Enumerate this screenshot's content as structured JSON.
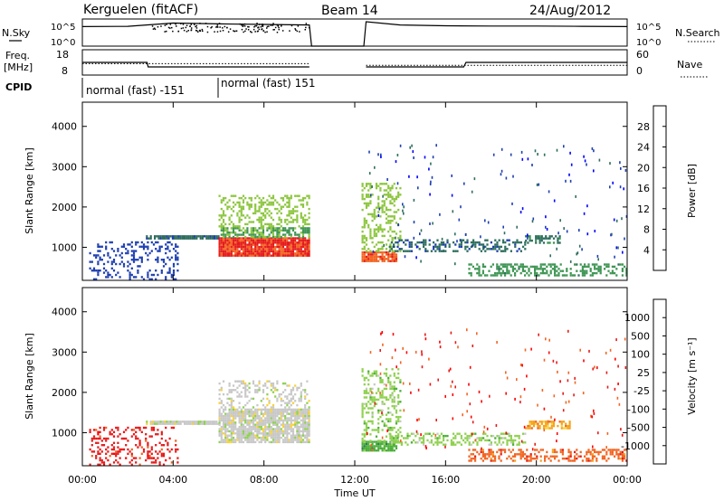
{
  "header": {
    "station": "Kerguelen (fitACF)",
    "beam": "Beam 14",
    "date": "24/Aug/2012"
  },
  "labels": {
    "nsky": "N.Sky",
    "nsearch": "N.Search",
    "freq_line1": "Freq.",
    "freq_line2": "[MHz]",
    "nave": "Nave",
    "cpid": "CPID",
    "ylabel": "Slant Range [km]",
    "xlabel": "Time UT",
    "power_cbar": "Power [dB]",
    "velocity_cbar": "Velocity [m s⁻¹]"
  },
  "chart_data": [
    {
      "type": "line",
      "panel": "noise",
      "y_left_ticks": [
        "10^5",
        "10^0"
      ],
      "y_right_ticks": [
        "10^5",
        "10^0"
      ],
      "series": [
        {
          "name": "N.Sky",
          "style": "solid",
          "x": [
            0.0,
            2.0,
            4.0,
            6.0,
            8.0,
            10.0,
            10.1,
            12.4,
            12.5,
            14.0,
            16.0,
            18.0,
            20.0,
            22.0,
            24.0
          ],
          "y_level": [
            0.72,
            0.73,
            0.85,
            0.82,
            0.8,
            0.78,
            0.0,
            0.0,
            0.9,
            0.78,
            0.75,
            0.74,
            0.74,
            0.73,
            0.72
          ]
        }
      ]
    },
    {
      "type": "line",
      "panel": "frequency_nave",
      "y_left_ticks": [
        "18",
        "8"
      ],
      "y_right_ticks": [
        "60",
        "0"
      ],
      "series": [
        {
          "name": "Freq.",
          "style": "solid",
          "x": [
            0.0,
            2.85,
            2.9,
            10.0,
            10.1,
            12.4,
            12.5,
            16.8,
            16.9,
            24.0
          ],
          "y": [
            13.0,
            13.0,
            11.2,
            11.2,
            null,
            null,
            11.2,
            11.2,
            13.0,
            13.0
          ]
        },
        {
          "name": "Nave",
          "style": "dotted",
          "x": [
            0.0,
            10.0,
            12.5,
            24.0
          ],
          "y": [
            27.0,
            27.0,
            23.0,
            23.0
          ]
        }
      ]
    },
    {
      "type": "table",
      "panel": "cpid",
      "segments": [
        {
          "start": 0.0,
          "end": 6.0,
          "label": "normal (fast) -151"
        },
        {
          "start": 6.0,
          "end": 24.0,
          "label": "normal (fast) 151"
        }
      ]
    },
    {
      "type": "heatmap",
      "panel": "power",
      "xlim": [
        0,
        24
      ],
      "ylim": [
        180,
        4600
      ],
      "x_ticks": [
        "00:00",
        "04:00",
        "08:00",
        "12:00",
        "16:00",
        "20:00",
        "00:00"
      ],
      "y_ticks": [
        1000,
        2000,
        3000,
        4000
      ],
      "colorbar": {
        "label": "Power [dB]",
        "ticks": [
          4,
          8,
          12,
          16,
          20,
          24,
          28
        ],
        "range": [
          0,
          32
        ],
        "colors": [
          "#0000ff",
          "#1e3fb0",
          "#2f6e5e",
          "#3f9654",
          "#8dc63f",
          "#e0c530",
          "#f6a21a",
          "#f26522",
          "#e51b1b",
          "#ff0000"
        ]
      },
      "regions": [
        {
          "t0": 0.3,
          "t1": 4.2,
          "r0": 200,
          "r1": 1150,
          "value": 4,
          "density": 0.25
        },
        {
          "t0": 2.8,
          "t1": 6.0,
          "r0": 1200,
          "r1": 1300,
          "value": 6,
          "density": 0.9
        },
        {
          "t0": 6.0,
          "t1": 10.0,
          "r0": 800,
          "r1": 1250,
          "value": 27,
          "density": 0.95
        },
        {
          "t0": 6.0,
          "t1": 10.0,
          "r0": 1250,
          "r1": 1500,
          "value": 12,
          "density": 0.7
        },
        {
          "t0": 6.0,
          "t1": 10.0,
          "r0": 1500,
          "r1": 2300,
          "value": 14,
          "density": 0.35
        },
        {
          "t0": 12.3,
          "t1": 13.8,
          "r0": 650,
          "r1": 900,
          "value": 26,
          "density": 0.9
        },
        {
          "t0": 12.3,
          "t1": 14.0,
          "r0": 900,
          "r1": 2600,
          "value": 14,
          "density": 0.3
        },
        {
          "t0": 13.5,
          "t1": 19.5,
          "r0": 900,
          "r1": 1200,
          "value": 6,
          "density": 0.4
        },
        {
          "t0": 17.0,
          "t1": 24.0,
          "r0": 300,
          "r1": 600,
          "value": 10,
          "density": 0.45
        },
        {
          "t0": 19.5,
          "t1": 21.0,
          "r0": 1100,
          "r1": 1300,
          "value": 8,
          "density": 0.6
        }
      ]
    },
    {
      "type": "heatmap",
      "panel": "velocity",
      "xlim": [
        0,
        24
      ],
      "ylim": [
        180,
        4600
      ],
      "x_ticks": [
        "00:00",
        "04:00",
        "08:00",
        "12:00",
        "16:00",
        "20:00",
        "00:00"
      ],
      "y_ticks": [
        1000,
        2000,
        3000,
        4000
      ],
      "colorbar": {
        "label": "Velocity [m s⁻¹]",
        "ticks": [
          1000,
          500,
          100,
          25,
          -25,
          -100,
          -500,
          -1000
        ],
        "colors": [
          "#1f3b9e",
          "#3a6ea5",
          "#2e7d4f",
          "#4caf3a",
          "#8fd14f",
          "#c8c8c8",
          "#f7d23a",
          "#f6a21a",
          "#f26522",
          "#e51b1b",
          "#ff0000"
        ]
      },
      "regions": [
        {
          "t0": 0.3,
          "t1": 4.2,
          "r0": 200,
          "r1": 1150,
          "value": -300,
          "density": 0.25
        },
        {
          "t0": 2.8,
          "t1": 6.0,
          "r0": 1200,
          "r1": 1300,
          "value": 0,
          "density": 0.9
        },
        {
          "t0": 6.0,
          "t1": 10.0,
          "r0": 750,
          "r1": 1600,
          "value": 0,
          "density": 0.85
        },
        {
          "t0": 6.0,
          "t1": 10.0,
          "r0": 1600,
          "r1": 2300,
          "value": 0,
          "density": 0.3
        },
        {
          "t0": 12.3,
          "t1": 13.8,
          "r0": 550,
          "r1": 800,
          "value": 80,
          "density": 0.9
        },
        {
          "t0": 12.3,
          "t1": 14.0,
          "r0": 800,
          "r1": 2600,
          "value": 20,
          "density": 0.3
        },
        {
          "t0": 13.5,
          "t1": 19.5,
          "r0": 700,
          "r1": 1000,
          "value": 60,
          "density": 0.4
        },
        {
          "t0": 17.0,
          "t1": 24.0,
          "r0": 300,
          "r1": 600,
          "value": -80,
          "density": 0.45
        },
        {
          "t0": 19.5,
          "t1": 21.5,
          "r0": 1100,
          "r1": 1300,
          "value": -60,
          "density": 0.6
        }
      ]
    }
  ]
}
